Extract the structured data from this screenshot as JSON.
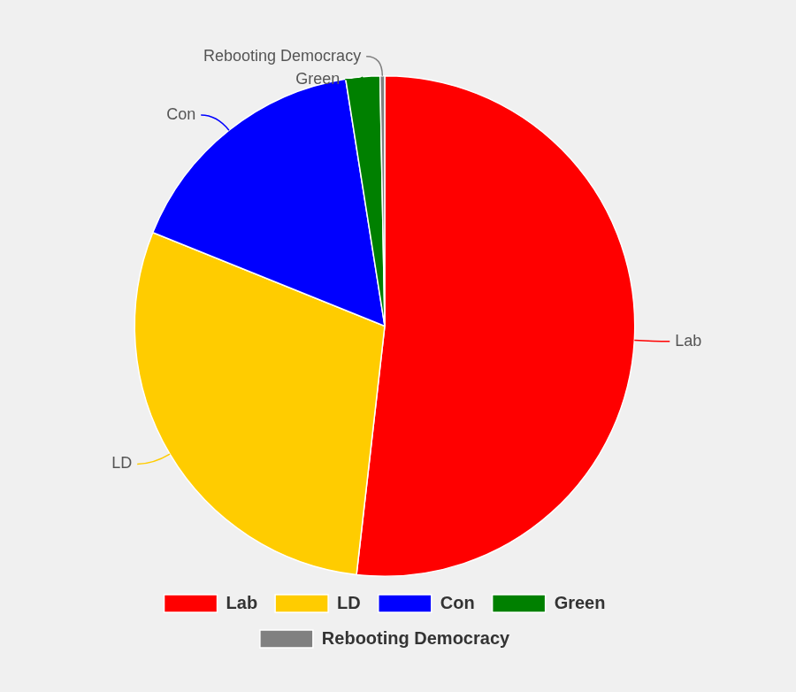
{
  "chart_data": {
    "type": "pie",
    "categories": [
      "Lab",
      "LD",
      "Con",
      "Green",
      "Rebooting Democracy"
    ],
    "values": [
      51.8,
      29.3,
      16.4,
      2.2,
      0.3
    ],
    "colors": [
      "#ff0000",
      "#ffcc00",
      "#0000ff",
      "#008000",
      "#808080"
    ],
    "legend": "bottom"
  }
}
